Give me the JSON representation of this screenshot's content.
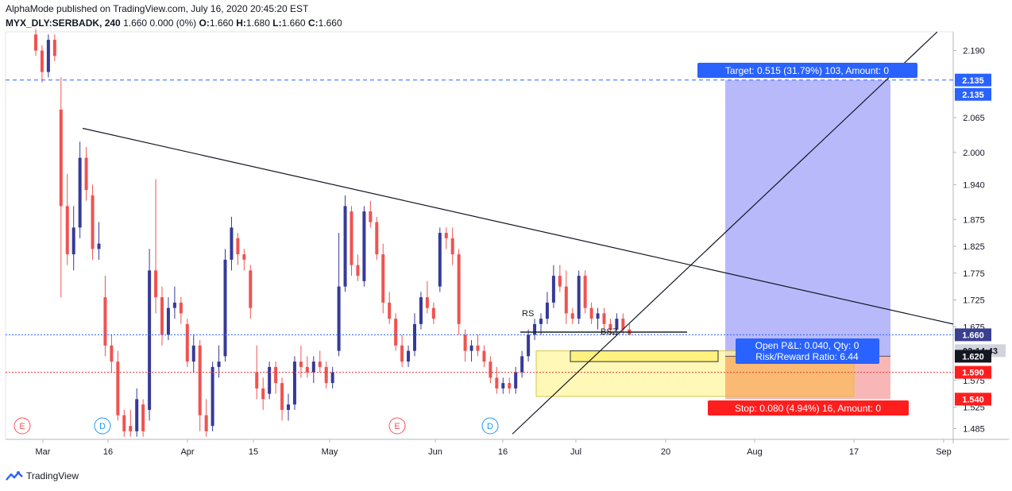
{
  "header": {
    "publisher_line": "AlphaMode published on TradingView.com, July 16, 2020 20:45:20 EST",
    "symbol_interval": "MYX_DLY:SERBADK, 240",
    "last": "1.660",
    "change": "0.000 (0%)",
    "open_label": "O:",
    "open": "1.660",
    "high_label": "H:",
    "high": "1.680",
    "low_label": "L:",
    "low": "1.660",
    "close_label": "C:",
    "close": "1.660"
  },
  "footer": {
    "brand": "TradingView",
    "logo_icon": "tradingview-logo-icon"
  },
  "position_tool": {
    "target_label": "Target: 0.515 (31.79%) 103, Amount: 0",
    "stop_label": "Stop: 0.080 (4.94%) 16, Amount: 0",
    "pnl_line1": "Open P&L: 0.040, Qty: 0",
    "pnl_line2": "Risk/Reward Ratio: 6.44",
    "entry": 1.62,
    "target": 2.135,
    "stop": 1.54
  },
  "annotations": {
    "rs": "RS",
    "bsz": "BSZ"
  },
  "event_markers": [
    {
      "label": "E",
      "color": "#f7525f"
    },
    {
      "label": "D",
      "color": "#2196f3"
    },
    {
      "label": "E",
      "color": "#f7525f"
    },
    {
      "label": "D",
      "color": "#2196f3"
    }
  ],
  "price_labels": {
    "target": "2.135",
    "target_dup": "2.135",
    "last": "1.660",
    "countdown": "03:14:43",
    "entry": "1.620",
    "stop_line": "1.590",
    "stop": "1.540"
  },
  "colors": {
    "up": "#363a98",
    "down": "#ef5350",
    "target_fill": "#b8b9fb",
    "stop_fill": "#f8b7b6",
    "zone_fill": "#fff59d",
    "blue_label": "#2962ff",
    "red_label": "#ff1e1e",
    "countdown_bg": "#3a3f8f"
  },
  "chart_data": {
    "type": "candlestick",
    "ylim": [
      1.465,
      2.225
    ],
    "y_ticks": [
      "2.190",
      "2.065",
      "2.000",
      "1.940",
      "1.875",
      "1.825",
      "1.775",
      "1.725",
      "1.675",
      "1.575",
      "1.525",
      "1.485"
    ],
    "x_ticks": [
      "Mar",
      "16",
      "Apr",
      "15",
      "May",
      "Jun",
      "16",
      "Jul",
      "20",
      "Aug",
      "17",
      "Sep"
    ],
    "horizontal_levels": [
      {
        "price": 2.135,
        "style": "dashed",
        "color": "#2962ff"
      },
      {
        "price": 1.66,
        "style": "dotted",
        "color": "#2962ff"
      },
      {
        "price": 1.59,
        "style": "dotted",
        "color": "#e53935"
      }
    ],
    "candles_approx": [
      {
        "o": 2.22,
        "h": 2.23,
        "l": 2.18,
        "c": 2.19
      },
      {
        "o": 2.19,
        "h": 2.2,
        "l": 2.13,
        "c": 2.15
      },
      {
        "o": 2.15,
        "h": 2.22,
        "l": 2.14,
        "c": 2.21
      },
      {
        "o": 2.21,
        "h": 2.22,
        "l": 2.17,
        "c": 2.18
      },
      {
        "o": 2.08,
        "h": 2.14,
        "l": 1.73,
        "c": 1.9
      },
      {
        "o": 1.9,
        "h": 1.96,
        "l": 1.79,
        "c": 1.81
      },
      {
        "o": 1.81,
        "h": 1.9,
        "l": 1.78,
        "c": 1.86
      },
      {
        "o": 1.86,
        "h": 2.02,
        "l": 1.84,
        "c": 1.99
      },
      {
        "o": 1.99,
        "h": 2.01,
        "l": 1.91,
        "c": 1.93
      },
      {
        "o": 1.92,
        "h": 1.94,
        "l": 1.8,
        "c": 1.82
      },
      {
        "o": 1.82,
        "h": 1.87,
        "l": 1.8,
        "c": 1.83
      },
      {
        "o": 1.73,
        "h": 1.77,
        "l": 1.62,
        "c": 1.64
      },
      {
        "o": 1.64,
        "h": 1.66,
        "l": 1.59,
        "c": 1.61
      },
      {
        "o": 1.61,
        "h": 1.63,
        "l": 1.5,
        "c": 1.51
      },
      {
        "o": 1.51,
        "h": 1.52,
        "l": 1.47,
        "c": 1.48
      },
      {
        "o": 1.49,
        "h": 1.52,
        "l": 1.47,
        "c": 1.48
      },
      {
        "o": 1.48,
        "h": 1.56,
        "l": 1.47,
        "c": 1.54
      },
      {
        "o": 1.53,
        "h": 1.54,
        "l": 1.47,
        "c": 1.48
      },
      {
        "o": 1.52,
        "h": 1.82,
        "l": 1.5,
        "c": 1.78
      },
      {
        "o": 1.78,
        "h": 1.95,
        "l": 1.7,
        "c": 1.73
      },
      {
        "o": 1.73,
        "h": 1.75,
        "l": 1.64,
        "c": 1.66
      },
      {
        "o": 1.66,
        "h": 1.73,
        "l": 1.65,
        "c": 1.71
      },
      {
        "o": 1.71,
        "h": 1.75,
        "l": 1.69,
        "c": 1.72
      },
      {
        "o": 1.72,
        "h": 1.73,
        "l": 1.68,
        "c": 1.7
      },
      {
        "o": 1.68,
        "h": 1.69,
        "l": 1.6,
        "c": 1.61
      },
      {
        "o": 1.61,
        "h": 1.66,
        "l": 1.59,
        "c": 1.64
      },
      {
        "o": 1.64,
        "h": 1.65,
        "l": 1.48,
        "c": 1.51
      },
      {
        "o": 1.51,
        "h": 1.54,
        "l": 1.47,
        "c": 1.48
      },
      {
        "o": 1.49,
        "h": 1.61,
        "l": 1.48,
        "c": 1.6
      },
      {
        "o": 1.6,
        "h": 1.64,
        "l": 1.58,
        "c": 1.61
      },
      {
        "o": 1.62,
        "h": 1.82,
        "l": 1.61,
        "c": 1.8
      },
      {
        "o": 1.8,
        "h": 1.88,
        "l": 1.78,
        "c": 1.86
      },
      {
        "o": 1.84,
        "h": 1.85,
        "l": 1.79,
        "c": 1.81
      },
      {
        "o": 1.81,
        "h": 1.82,
        "l": 1.78,
        "c": 1.8
      },
      {
        "o": 1.78,
        "h": 1.79,
        "l": 1.69,
        "c": 1.71
      },
      {
        "o": 1.59,
        "h": 1.64,
        "l": 1.54,
        "c": 1.56
      },
      {
        "o": 1.56,
        "h": 1.58,
        "l": 1.52,
        "c": 1.54
      },
      {
        "o": 1.55,
        "h": 1.61,
        "l": 1.54,
        "c": 1.6
      },
      {
        "o": 1.6,
        "h": 1.61,
        "l": 1.55,
        "c": 1.57
      },
      {
        "o": 1.57,
        "h": 1.58,
        "l": 1.5,
        "c": 1.52
      },
      {
        "o": 1.52,
        "h": 1.55,
        "l": 1.5,
        "c": 1.53
      },
      {
        "o": 1.53,
        "h": 1.62,
        "l": 1.52,
        "c": 1.61
      },
      {
        "o": 1.61,
        "h": 1.64,
        "l": 1.58,
        "c": 1.6
      },
      {
        "o": 1.6,
        "h": 1.62,
        "l": 1.58,
        "c": 1.59
      },
      {
        "o": 1.59,
        "h": 1.62,
        "l": 1.57,
        "c": 1.61
      },
      {
        "o": 1.61,
        "h": 1.63,
        "l": 1.59,
        "c": 1.6
      },
      {
        "o": 1.6,
        "h": 1.61,
        "l": 1.56,
        "c": 1.57
      },
      {
        "o": 1.57,
        "h": 1.6,
        "l": 1.56,
        "c": 1.59
      },
      {
        "o": 1.63,
        "h": 1.85,
        "l": 1.62,
        "c": 1.75
      },
      {
        "o": 1.75,
        "h": 1.92,
        "l": 1.74,
        "c": 1.9
      },
      {
        "o": 1.89,
        "h": 1.9,
        "l": 1.77,
        "c": 1.79
      },
      {
        "o": 1.79,
        "h": 1.81,
        "l": 1.76,
        "c": 1.77
      },
      {
        "o": 1.76,
        "h": 1.9,
        "l": 1.75,
        "c": 1.89
      },
      {
        "o": 1.89,
        "h": 1.91,
        "l": 1.86,
        "c": 1.87
      },
      {
        "o": 1.87,
        "h": 1.88,
        "l": 1.8,
        "c": 1.81
      },
      {
        "o": 1.81,
        "h": 1.83,
        "l": 1.7,
        "c": 1.72
      },
      {
        "o": 1.72,
        "h": 1.74,
        "l": 1.68,
        "c": 1.69
      },
      {
        "o": 1.69,
        "h": 1.7,
        "l": 1.63,
        "c": 1.64
      },
      {
        "o": 1.64,
        "h": 1.66,
        "l": 1.6,
        "c": 1.61
      },
      {
        "o": 1.61,
        "h": 1.64,
        "l": 1.6,
        "c": 1.63
      },
      {
        "o": 1.63,
        "h": 1.7,
        "l": 1.62,
        "c": 1.68
      },
      {
        "o": 1.68,
        "h": 1.74,
        "l": 1.67,
        "c": 1.73
      },
      {
        "o": 1.73,
        "h": 1.76,
        "l": 1.7,
        "c": 1.71
      },
      {
        "o": 1.71,
        "h": 1.72,
        "l": 1.68,
        "c": 1.69
      },
      {
        "o": 1.75,
        "h": 1.86,
        "l": 1.74,
        "c": 1.85
      },
      {
        "o": 1.85,
        "h": 1.86,
        "l": 1.82,
        "c": 1.84
      },
      {
        "o": 1.84,
        "h": 1.86,
        "l": 1.79,
        "c": 1.81
      },
      {
        "o": 1.81,
        "h": 1.82,
        "l": 1.66,
        "c": 1.68
      },
      {
        "o": 1.66,
        "h": 1.67,
        "l": 1.61,
        "c": 1.63
      },
      {
        "o": 1.63,
        "h": 1.65,
        "l": 1.61,
        "c": 1.64
      },
      {
        "o": 1.64,
        "h": 1.66,
        "l": 1.62,
        "c": 1.63
      },
      {
        "o": 1.63,
        "h": 1.64,
        "l": 1.6,
        "c": 1.61
      },
      {
        "o": 1.61,
        "h": 1.62,
        "l": 1.57,
        "c": 1.58
      },
      {
        "o": 1.58,
        "h": 1.6,
        "l": 1.55,
        "c": 1.56
      },
      {
        "o": 1.56,
        "h": 1.58,
        "l": 1.55,
        "c": 1.57
      },
      {
        "o": 1.57,
        "h": 1.58,
        "l": 1.55,
        "c": 1.56
      },
      {
        "o": 1.56,
        "h": 1.6,
        "l": 1.55,
        "c": 1.59
      },
      {
        "o": 1.59,
        "h": 1.63,
        "l": 1.58,
        "c": 1.62
      },
      {
        "o": 1.62,
        "h": 1.67,
        "l": 1.61,
        "c": 1.66
      },
      {
        "o": 1.66,
        "h": 1.69,
        "l": 1.65,
        "c": 1.68
      },
      {
        "o": 1.68,
        "h": 1.7,
        "l": 1.66,
        "c": 1.69
      },
      {
        "o": 1.69,
        "h": 1.74,
        "l": 1.68,
        "c": 1.72
      },
      {
        "o": 1.72,
        "h": 1.79,
        "l": 1.71,
        "c": 1.77
      },
      {
        "o": 1.77,
        "h": 1.79,
        "l": 1.74,
        "c": 1.75
      },
      {
        "o": 1.75,
        "h": 1.78,
        "l": 1.68,
        "c": 1.7
      },
      {
        "o": 1.7,
        "h": 1.71,
        "l": 1.68,
        "c": 1.69
      },
      {
        "o": 1.69,
        "h": 1.78,
        "l": 1.68,
        "c": 1.77
      },
      {
        "o": 1.77,
        "h": 1.78,
        "l": 1.7,
        "c": 1.71
      },
      {
        "o": 1.71,
        "h": 1.72,
        "l": 1.68,
        "c": 1.69
      },
      {
        "o": 1.69,
        "h": 1.71,
        "l": 1.67,
        "c": 1.7
      },
      {
        "o": 1.7,
        "h": 1.71,
        "l": 1.67,
        "c": 1.68
      },
      {
        "o": 1.68,
        "h": 1.69,
        "l": 1.66,
        "c": 1.67
      },
      {
        "o": 1.67,
        "h": 1.7,
        "l": 1.66,
        "c": 1.69
      },
      {
        "o": 1.69,
        "h": 1.7,
        "l": 1.66,
        "c": 1.67
      },
      {
        "o": 1.67,
        "h": 1.68,
        "l": 1.66,
        "c": 1.66
      }
    ],
    "trendlines": [
      {
        "name": "descending",
        "from": {
          "x_candle": 11,
          "price": 2.04
        },
        "to": {
          "x_candle": 123,
          "price": 1.69
        }
      },
      {
        "name": "ascending",
        "from": {
          "x_candle": 70,
          "price": 1.48
        },
        "to": {
          "x_candle": 125,
          "price": 2.21
        }
      }
    ]
  }
}
